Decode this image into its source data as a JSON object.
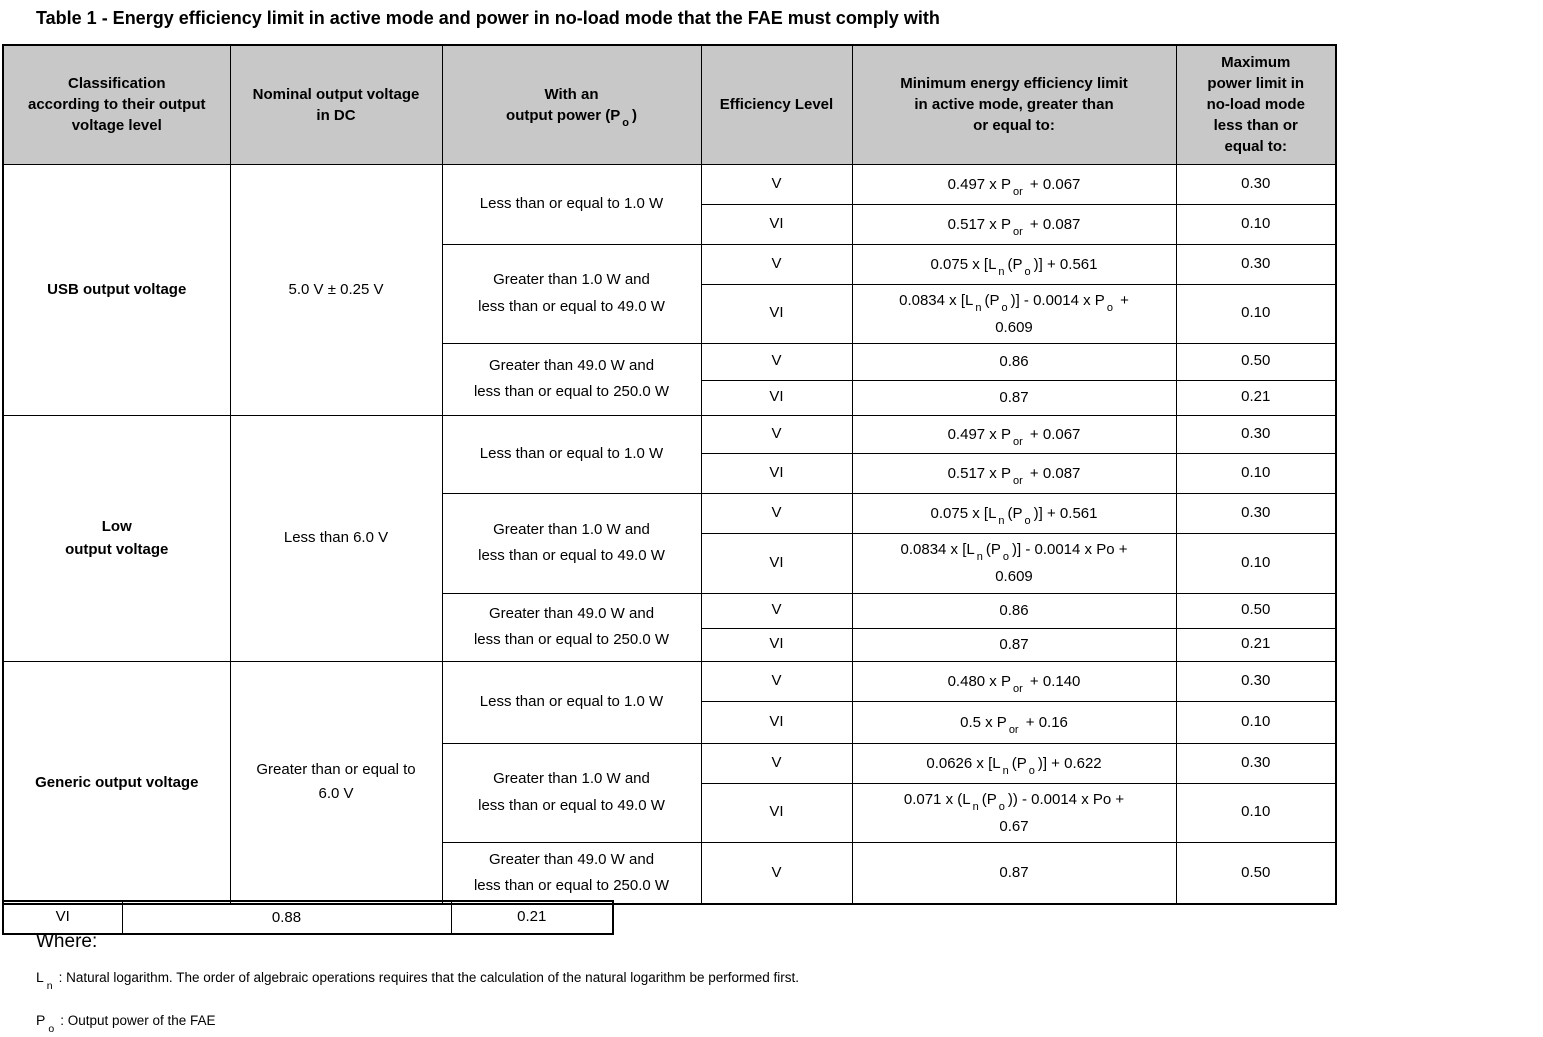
{
  "title": "Table 1 - Energy efficiency limit in active mode and power in no-load mode that the FAE must comply with",
  "colors": {
    "header_bg": "#C8C8C8",
    "border": "#000000",
    "background": "#FFFFFF"
  },
  "table": {
    "headers": [
      "Classification\naccording to their output\nvoltage level",
      "Nominal output voltage\nin DC",
      "With an\noutput power (P~o~)",
      "Efficiency Level",
      "Minimum energy efficiency limit\nin active mode, greater than\nor equal to:",
      "Maximum\npower limit in\nno-load mode\nless than or\nequal to:"
    ],
    "sections": [
      {
        "classification": "USB output voltage",
        "nominal": "5.0 V ± 0.25 V",
        "groups": [
          {
            "range": "Less than or equal to 1.0 W",
            "rows": [
              {
                "level": "V",
                "formula": "0.497 x P~or~ + 0.067",
                "max": "0.30"
              },
              {
                "level": "VI",
                "formula": "0.517 x P~or~ + 0.087",
                "max": "0.10"
              }
            ]
          },
          {
            "range": "Greater than 1.0 W and\nless than or equal to 49.0 W",
            "rows": [
              {
                "level": "V",
                "formula": "0.075 x [L~n~(P~o~)] + 0.561",
                "max": "0.30"
              },
              {
                "level": "VI",
                "formula": "0.0834 x [L~n~(P~o~)] - 0.0014 x P~o~ +\n0.609",
                "max": "0.10"
              }
            ]
          },
          {
            "range": "Greater than 49.0 W and\nless than or equal to 250.0 W",
            "rows": [
              {
                "level": "V",
                "formula": "0.86",
                "max": "0.50"
              },
              {
                "level": "VI",
                "formula": "0.87",
                "max": "0.21"
              }
            ]
          }
        ]
      },
      {
        "classification": "Low\noutput voltage",
        "nominal": "Less than 6.0 V",
        "groups": [
          {
            "range": "Less than or equal to 1.0 W",
            "rows": [
              {
                "level": "V",
                "formula": "0.497 x P~or~ + 0.067",
                "max": "0.30"
              },
              {
                "level": "VI",
                "formula": "0.517 x P~or~ + 0.087",
                "max": "0.10"
              }
            ]
          },
          {
            "range": "Greater than 1.0 W and\nless than or equal to 49.0 W",
            "rows": [
              {
                "level": "V",
                "formula": "0.075 x [L~n~(P~o~)] + 0.561",
                "max": "0.30"
              },
              {
                "level": "VI",
                "formula": "0.0834 x [L~n~(P~o~)] - 0.0014 x Po +\n0.609",
                "max": "0.10"
              }
            ]
          },
          {
            "range": "Greater than 49.0 W and\nless than or equal to 250.0 W",
            "rows": [
              {
                "level": "V",
                "formula": "0.86",
                "max": "0.50"
              },
              {
                "level": "VI",
                "formula": "0.87",
                "max": "0.21"
              }
            ]
          }
        ]
      },
      {
        "classification": "Generic output voltage",
        "nominal": "Greater than or equal to\n6.0 V",
        "groups": [
          {
            "range": "Less than or equal to 1.0 W",
            "rows": [
              {
                "level": "V",
                "formula": "0.480 x P~or~ + 0.140",
                "max": "0.30"
              },
              {
                "level": "VI",
                "formula": "0.5 x P~or~ + 0.16",
                "max": "0.10"
              }
            ]
          },
          {
            "range": "Greater than 1.0 W and\nless than or equal to 49.0 W",
            "rows": [
              {
                "level": "V",
                "formula": "0.0626 x [L~n~(P~o~)] + 0.622",
                "max": "0.30"
              },
              {
                "level": "VI",
                "formula": "0.071 x (L~n~(P~o~)) - 0.0014 x Po +\n0.67",
                "max": "0.10"
              }
            ]
          },
          {
            "range": "Greater than 49.0 W and\nless than or equal to 250.0 W",
            "rows": [
              {
                "level": "V",
                "formula": "0.87",
                "max": "0.50"
              }
            ]
          }
        ]
      }
    ],
    "overflow_row": {
      "level": "VI",
      "formula": "0.88",
      "max": "0.21"
    }
  },
  "where_label": "Where:",
  "footnotes": [
    {
      "symbol": "L",
      "subscript": "n",
      "text": ": Natural logarithm. The order of algebraic operations requires that the calculation of the natural logarithm be performed first."
    },
    {
      "symbol": "P",
      "subscript": "o",
      "text": ": Output power of the FAE"
    }
  ]
}
